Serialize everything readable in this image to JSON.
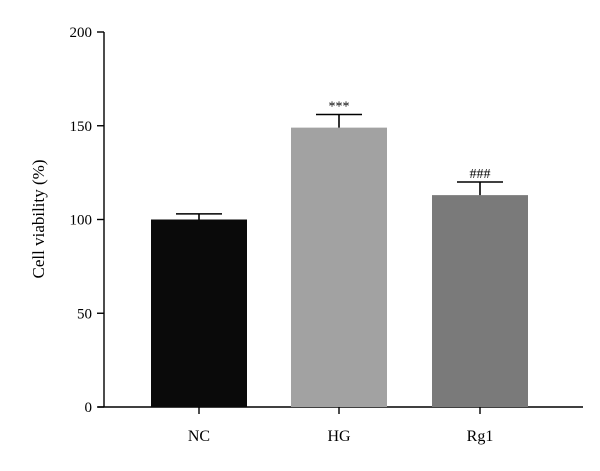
{
  "chart_data": {
    "type": "bar",
    "categories": [
      "NC",
      "HG",
      "Rg1"
    ],
    "values": [
      100,
      149,
      113
    ],
    "errors": [
      3,
      7,
      7
    ],
    "annotations": [
      "",
      "***",
      "###"
    ],
    "colors": [
      "#0a0a0a",
      "#a2a2a2",
      "#7a7a7a"
    ],
    "title": "",
    "xlabel": "",
    "ylabel": "Cell viability (%)",
    "ylim": [
      0,
      200
    ],
    "yticks": [
      0,
      50,
      100,
      150,
      200
    ],
    "grid": false,
    "legend": "none"
  }
}
